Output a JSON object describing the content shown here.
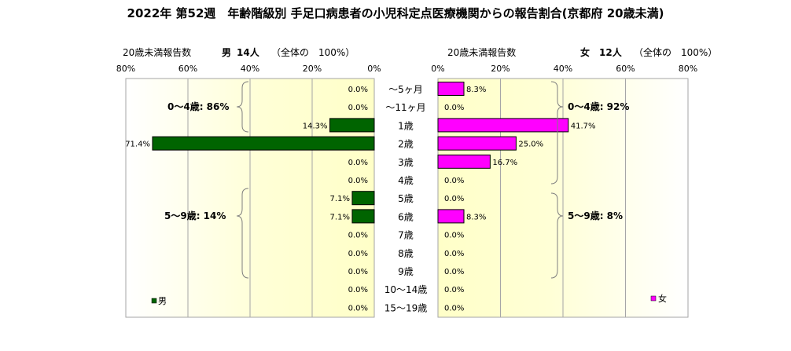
{
  "title": "2022年 第52週　年齢階級別 手足口病患者の小児科定点医療機関からの報告割合(京都府 20歳未満)",
  "left_panel": {
    "header_label": "20歳未満報告数",
    "header_sex": "男",
    "header_count": "14人",
    "header_total": "（全体の　100%）",
    "legend_label": "男",
    "group_labels": [
      "0～4歳: 86%",
      "5～9歳: 14%"
    ]
  },
  "right_panel": {
    "header_label": "20歳未満報告数",
    "header_sex": "女",
    "header_count": "12人",
    "header_total": "（全体の　100%）",
    "legend_label": "女",
    "group_labels": [
      "0～4歳: 92%",
      "5～9歳: 8%"
    ]
  },
  "colors": {
    "male": "#006400",
    "female": "#ff00ff",
    "plot_fill": "#ffffcc"
  },
  "chart_data": {
    "type": "bar",
    "orientation": "horizontal-population-pyramid",
    "categories": [
      "～5ヶ月",
      "～11ヶ月",
      "1歳",
      "2歳",
      "3歳",
      "4歳",
      "5歳",
      "6歳",
      "7歳",
      "8歳",
      "9歳",
      "10～14歳",
      "15～19歳"
    ],
    "xlim": [
      0,
      80
    ],
    "x_ticks": [
      "0%",
      "20%",
      "40%",
      "60%",
      "80%"
    ],
    "series": [
      {
        "name": "男",
        "values": [
          0.0,
          0.0,
          14.3,
          71.4,
          0.0,
          0.0,
          7.1,
          7.1,
          0.0,
          0.0,
          0.0,
          0.0,
          0.0
        ],
        "labels": [
          "0.0%",
          "0.0%",
          "14.3%",
          "71.4%",
          "0.0%",
          "0.0%",
          "7.1%",
          "7.1%",
          "0.0%",
          "0.0%",
          "0.0%",
          "0.0%",
          "0.0%"
        ]
      },
      {
        "name": "女",
        "values": [
          8.3,
          0.0,
          41.7,
          25.0,
          16.7,
          0.0,
          0.0,
          8.3,
          0.0,
          0.0,
          0.0,
          0.0,
          0.0
        ],
        "labels": [
          "8.3%",
          "0.0%",
          "41.7%",
          "25.0%",
          "16.7%",
          "0.0%",
          "0.0%",
          "8.3%",
          "0.0%",
          "0.0%",
          "0.0%",
          "0.0%",
          "0.0%"
        ]
      }
    ]
  }
}
